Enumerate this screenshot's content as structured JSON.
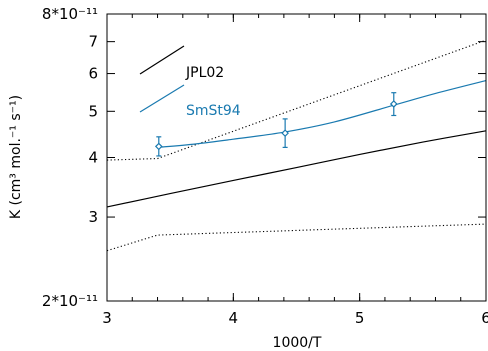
{
  "chart_data": {
    "type": "line",
    "xlabel": "1000/T",
    "ylabel": "K (cm³ mol.⁻¹ s⁻¹)",
    "xlim": [
      3,
      6
    ],
    "ylim": [
      2e-11,
      8e-11
    ],
    "yscale": "log",
    "grid": false,
    "legend_position": "top-left",
    "x_ticks": [
      3,
      4,
      5,
      6
    ],
    "x_tick_labels": [
      "3",
      "4",
      "5",
      "6"
    ],
    "y_ticks": [
      2e-11,
      3e-11,
      4e-11,
      5e-11,
      6e-11,
      7e-11,
      8e-11
    ],
    "y_tick_labels": [
      "2*10⁻¹¹",
      "3",
      "4",
      "5",
      "6",
      "7",
      "8*10⁻¹¹"
    ],
    "series": [
      {
        "name": "JPL02",
        "color": "#000000",
        "style": "solid",
        "x": [
          3.0,
          3.5,
          4.0,
          4.5,
          5.0,
          5.5,
          6.0
        ],
        "y": [
          3.15e-11,
          3.36e-11,
          3.58e-11,
          3.81e-11,
          4.06e-11,
          4.31e-11,
          4.55e-11
        ]
      },
      {
        "name": "",
        "color": "#000000",
        "style": "dotted",
        "x": [
          3.0,
          3.4,
          6.0
        ],
        "y": [
          3.95e-11,
          3.98e-11,
          7.05e-11
        ]
      },
      {
        "name": "",
        "color": "#000000",
        "style": "dotted",
        "x": [
          3.0,
          3.4,
          6.0
        ],
        "y": [
          2.55e-11,
          2.75e-11,
          2.9e-11
        ]
      },
      {
        "name": "SmSt94",
        "color": "#1a7ab0",
        "style": "solid",
        "x": [
          3.4,
          3.7,
          4.0,
          4.4,
          4.8,
          5.27,
          5.6,
          6.0
        ],
        "y": [
          4.2e-11,
          4.27e-11,
          4.37e-11,
          4.52e-11,
          4.75e-11,
          5.15e-11,
          5.45e-11,
          5.8e-11
        ]
      }
    ],
    "points": {
      "color": "#1a7ab0",
      "x": [
        3.41,
        4.41,
        5.27
      ],
      "y": [
        4.22e-11,
        4.5e-11,
        5.18e-11
      ],
      "err_low": [
        4.03e-11,
        4.2e-11,
        4.9e-11
      ],
      "err_high": [
        4.42e-11,
        4.82e-11,
        5.47e-11
      ]
    }
  }
}
